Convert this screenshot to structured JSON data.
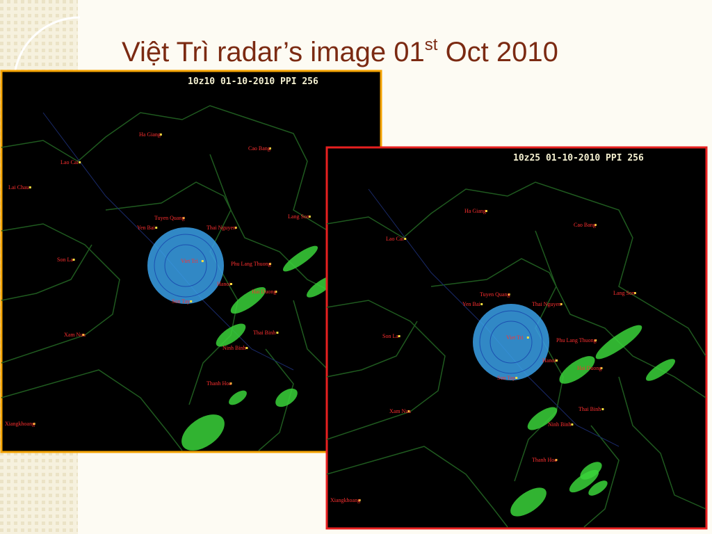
{
  "title": {
    "text": "Việt Trì radar’s image 01",
    "superscript": "st",
    "text_after": " Oct 2010"
  },
  "panels": [
    {
      "header": "10z10 01-10-2010 PPI 256",
      "places": [
        "Ha Giang",
        "Cao Bang",
        "Lao Cai",
        "Lai Chau",
        "Tuyen Quang",
        "Thai Nguyen",
        "Lang Son",
        "Yen Bai",
        "Son La",
        "Viet Tri",
        "Phu Lang Thuong",
        "Hanoi",
        "Hai Duong",
        "Son Tay",
        "Thai Binh",
        "Ninh Binh",
        "Xam Nua",
        "Thanh Hoa",
        "Xiangkhoang"
      ]
    },
    {
      "header": "10z25 01-10-2010 PPI 256",
      "places": [
        "Ha Giang",
        "Cao Bang",
        "Lao Cai",
        "Tuyen Quang",
        "Thai Nguyen",
        "Lang Son",
        "Yen Bai",
        "Son La",
        "Viet Tri",
        "Phu Lang Thuong",
        "Hanoi",
        "Hai Duong",
        "Son Tay",
        "Thai Binh",
        "Ninh Binh",
        "Xam Nua",
        "Thanh Hoa",
        "Xiangkhoang"
      ]
    }
  ]
}
